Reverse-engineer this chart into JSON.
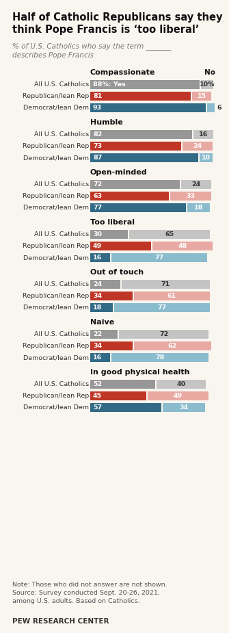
{
  "title_line1": "Half of Catholic Republicans say they",
  "title_line2": "think Pope Francis is ‘too liberal’",
  "subtitle_line1": "% of U.S. Catholics who say the term _______",
  "subtitle_line2": "describes Pope Francis",
  "sections": [
    {
      "label": "Compassionate",
      "rows": [
        {
          "name": "All U.S. Catholics",
          "yes": 88,
          "no": 10,
          "type": "all",
          "yes_label": "88%: Yes",
          "no_label": "10%"
        },
        {
          "name": "Republican/lean Rep",
          "yes": 81,
          "no": 15,
          "type": "rep"
        },
        {
          "name": "Democrat/lean Dem",
          "yes": 93,
          "no": 6,
          "type": "dem"
        }
      ]
    },
    {
      "label": "Humble",
      "rows": [
        {
          "name": "All U.S. Catholics",
          "yes": 82,
          "no": 16,
          "type": "all"
        },
        {
          "name": "Republican/lean Rep",
          "yes": 73,
          "no": 24,
          "type": "rep"
        },
        {
          "name": "Democrat/lean Dem",
          "yes": 87,
          "no": 10,
          "type": "dem"
        }
      ]
    },
    {
      "label": "Open-minded",
      "rows": [
        {
          "name": "All U.S. Catholics",
          "yes": 72,
          "no": 24,
          "type": "all"
        },
        {
          "name": "Republican/lean Rep",
          "yes": 63,
          "no": 33,
          "type": "rep"
        },
        {
          "name": "Democrat/lean Dem",
          "yes": 77,
          "no": 18,
          "type": "dem"
        }
      ]
    },
    {
      "label": "Too liberal",
      "rows": [
        {
          "name": "All U.S. Catholics",
          "yes": 30,
          "no": 65,
          "type": "all"
        },
        {
          "name": "Republican/lean Rep",
          "yes": 49,
          "no": 48,
          "type": "rep"
        },
        {
          "name": "Democrat/lean Dem",
          "yes": 16,
          "no": 77,
          "type": "dem"
        }
      ]
    },
    {
      "label": "Out of touch",
      "rows": [
        {
          "name": "All U.S. Catholics",
          "yes": 24,
          "no": 71,
          "type": "all"
        },
        {
          "name": "Republican/lean Rep",
          "yes": 34,
          "no": 61,
          "type": "rep"
        },
        {
          "name": "Democrat/lean Dem",
          "yes": 18,
          "no": 77,
          "type": "dem"
        }
      ]
    },
    {
      "label": "Naive",
      "rows": [
        {
          "name": "All U.S. Catholics",
          "yes": 22,
          "no": 72,
          "type": "all"
        },
        {
          "name": "Republican/lean Rep",
          "yes": 34,
          "no": 62,
          "type": "rep"
        },
        {
          "name": "Democrat/lean Dem",
          "yes": 16,
          "no": 78,
          "type": "dem"
        }
      ]
    },
    {
      "label": "In good physical health",
      "rows": [
        {
          "name": "All U.S. Catholics",
          "yes": 52,
          "no": 40,
          "type": "all"
        },
        {
          "name": "Republican/lean Rep",
          "yes": 45,
          "no": 49,
          "type": "rep"
        },
        {
          "name": "Democrat/lean Dem",
          "yes": 57,
          "no": 34,
          "type": "dem"
        }
      ]
    }
  ],
  "colors": {
    "all_yes": "#979797",
    "all_no": "#c4c4c4",
    "rep_yes": "#bf3626",
    "rep_no": "#e8a9a2",
    "dem_yes": "#336b87",
    "dem_no": "#8bbcce",
    "bg": "#f9f6f0"
  },
  "note_line1": "Note: Those who did not answer are not shown.",
  "note_line2": "Source: Survey conducted Sept. 20-26, 2021,",
  "note_line3": "among U.S. adults. Based on Catholics.",
  "footer": "PEW RESEARCH CENTER"
}
